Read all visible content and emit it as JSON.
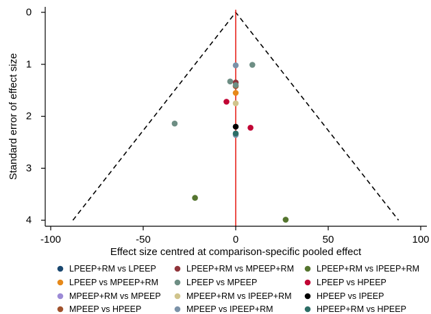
{
  "chart_data": {
    "type": "scatter",
    "title": "",
    "xlabel": "Effect size centred at comparison-specific pooled effect",
    "ylabel": "Standard error of effect size",
    "xlim": [
      -102,
      102
    ],
    "ylim": [
      4.1,
      -0.05
    ],
    "y_reversed": true,
    "xticks": [
      -100,
      -50,
      0,
      50,
      100
    ],
    "yticks": [
      0,
      1,
      2,
      3,
      4
    ],
    "grid": false,
    "legend_position": "bottom",
    "reference_line": {
      "x": 0,
      "color": "#e8211a"
    },
    "funnel": {
      "apex": [
        0,
        0
      ],
      "base_se": 4,
      "left_x": -88,
      "right_x": 88,
      "style": "dashed",
      "color": "#000000"
    },
    "series": [
      {
        "name": "LPEEP+RM vs LPEEP",
        "color": "#1a476f",
        "points": []
      },
      {
        "name": "LPEEP vs MPEEP+RM",
        "color": "#e6891a",
        "points": [
          [
            0,
            1.55
          ]
        ]
      },
      {
        "name": "MPEEP+RM vs MPEEP",
        "color": "#9c8ad6",
        "points": []
      },
      {
        "name": "MPEEP vs HPEEP",
        "color": "#a0522d",
        "points": [
          [
            0,
            1.42
          ]
        ]
      },
      {
        "name": "LPEEP+RM vs MPEEP+RM",
        "color": "#90353b",
        "points": [
          [
            0,
            1.35
          ]
        ]
      },
      {
        "name": "LPEEP vs MPEEP",
        "color": "#6e8e84",
        "points": [
          [
            9,
            1.01
          ],
          [
            -3,
            1.33
          ],
          [
            -33,
            2.14
          ],
          [
            0,
            1.4
          ]
        ]
      },
      {
        "name": "MPEEP+RM vs IPEEP+RM",
        "color": "#d0c48c",
        "points": [
          [
            0,
            1.75
          ]
        ]
      },
      {
        "name": "MPEEP vs IPEEP+RM",
        "color": "#7b92a8",
        "points": [
          [
            0,
            1.02
          ],
          [
            0,
            2.36
          ]
        ]
      },
      {
        "name": "LPEEP+RM vs IPEEP+RM",
        "color": "#55752f",
        "points": [
          [
            -22,
            3.57
          ],
          [
            27,
            3.99
          ]
        ]
      },
      {
        "name": "LPEEP vs HPEEP",
        "color": "#c10534",
        "points": [
          [
            -5,
            1.72
          ],
          [
            8,
            2.22
          ]
        ]
      },
      {
        "name": "HPEEP vs IPEEP",
        "color": "#000000",
        "points": [
          [
            0,
            2.2
          ]
        ]
      },
      {
        "name": "HPEEP+RM vs HPEEP",
        "color": "#2d6d66",
        "points": [
          [
            0,
            2.33
          ]
        ]
      }
    ]
  }
}
